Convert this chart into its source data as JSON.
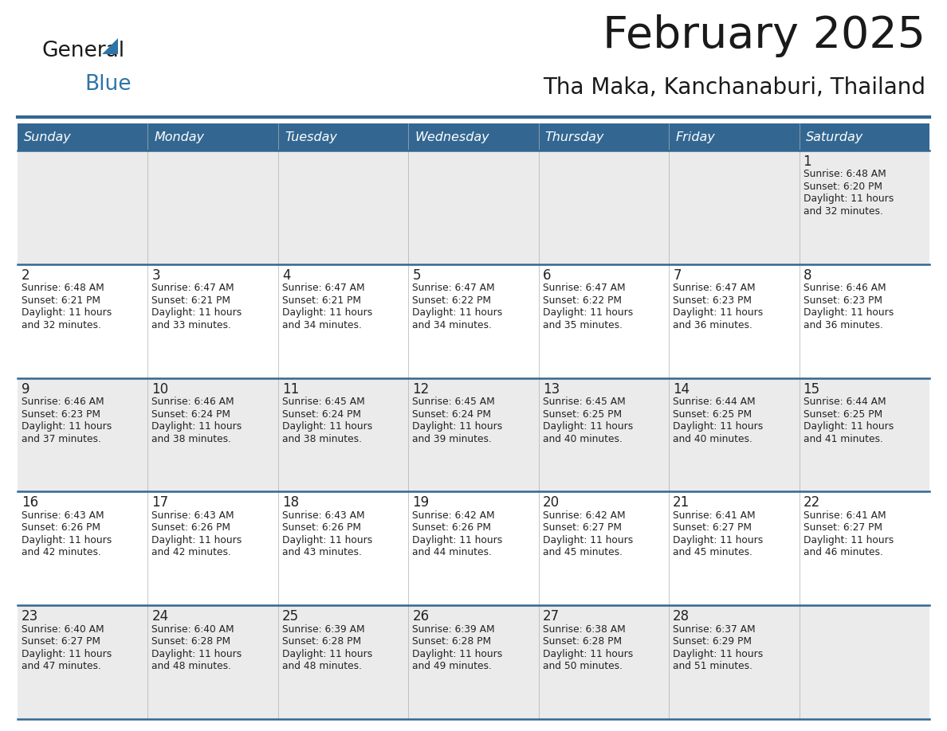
{
  "title": "February 2025",
  "subtitle": "Tha Maka, Kanchanaburi, Thailand",
  "header_bg": "#336791",
  "header_text": "#FFFFFF",
  "row_bg_row0": "#EBEBEB",
  "row_bg_odd": "#EBEBEB",
  "row_bg_even": "#FFFFFF",
  "border_color": "#336791",
  "day_headers": [
    "Sunday",
    "Monday",
    "Tuesday",
    "Wednesday",
    "Thursday",
    "Friday",
    "Saturday"
  ],
  "days_data": [
    {
      "day": 1,
      "col": 6,
      "row": 0,
      "sunrise": "6:48 AM",
      "sunset": "6:20 PM",
      "daylight_h": "11 hours",
      "daylight_m": "and 32 minutes."
    },
    {
      "day": 2,
      "col": 0,
      "row": 1,
      "sunrise": "6:48 AM",
      "sunset": "6:21 PM",
      "daylight_h": "11 hours",
      "daylight_m": "and 32 minutes."
    },
    {
      "day": 3,
      "col": 1,
      "row": 1,
      "sunrise": "6:47 AM",
      "sunset": "6:21 PM",
      "daylight_h": "11 hours",
      "daylight_m": "and 33 minutes."
    },
    {
      "day": 4,
      "col": 2,
      "row": 1,
      "sunrise": "6:47 AM",
      "sunset": "6:21 PM",
      "daylight_h": "11 hours",
      "daylight_m": "and 34 minutes."
    },
    {
      "day": 5,
      "col": 3,
      "row": 1,
      "sunrise": "6:47 AM",
      "sunset": "6:22 PM",
      "daylight_h": "11 hours",
      "daylight_m": "and 34 minutes."
    },
    {
      "day": 6,
      "col": 4,
      "row": 1,
      "sunrise": "6:47 AM",
      "sunset": "6:22 PM",
      "daylight_h": "11 hours",
      "daylight_m": "and 35 minutes."
    },
    {
      "day": 7,
      "col": 5,
      "row": 1,
      "sunrise": "6:47 AM",
      "sunset": "6:23 PM",
      "daylight_h": "11 hours",
      "daylight_m": "and 36 minutes."
    },
    {
      "day": 8,
      "col": 6,
      "row": 1,
      "sunrise": "6:46 AM",
      "sunset": "6:23 PM",
      "daylight_h": "11 hours",
      "daylight_m": "and 36 minutes."
    },
    {
      "day": 9,
      "col": 0,
      "row": 2,
      "sunrise": "6:46 AM",
      "sunset": "6:23 PM",
      "daylight_h": "11 hours",
      "daylight_m": "and 37 minutes."
    },
    {
      "day": 10,
      "col": 1,
      "row": 2,
      "sunrise": "6:46 AM",
      "sunset": "6:24 PM",
      "daylight_h": "11 hours",
      "daylight_m": "and 38 minutes."
    },
    {
      "day": 11,
      "col": 2,
      "row": 2,
      "sunrise": "6:45 AM",
      "sunset": "6:24 PM",
      "daylight_h": "11 hours",
      "daylight_m": "and 38 minutes."
    },
    {
      "day": 12,
      "col": 3,
      "row": 2,
      "sunrise": "6:45 AM",
      "sunset": "6:24 PM",
      "daylight_h": "11 hours",
      "daylight_m": "and 39 minutes."
    },
    {
      "day": 13,
      "col": 4,
      "row": 2,
      "sunrise": "6:45 AM",
      "sunset": "6:25 PM",
      "daylight_h": "11 hours",
      "daylight_m": "and 40 minutes."
    },
    {
      "day": 14,
      "col": 5,
      "row": 2,
      "sunrise": "6:44 AM",
      "sunset": "6:25 PM",
      "daylight_h": "11 hours",
      "daylight_m": "and 40 minutes."
    },
    {
      "day": 15,
      "col": 6,
      "row": 2,
      "sunrise": "6:44 AM",
      "sunset": "6:25 PM",
      "daylight_h": "11 hours",
      "daylight_m": "and 41 minutes."
    },
    {
      "day": 16,
      "col": 0,
      "row": 3,
      "sunrise": "6:43 AM",
      "sunset": "6:26 PM",
      "daylight_h": "11 hours",
      "daylight_m": "and 42 minutes."
    },
    {
      "day": 17,
      "col": 1,
      "row": 3,
      "sunrise": "6:43 AM",
      "sunset": "6:26 PM",
      "daylight_h": "11 hours",
      "daylight_m": "and 42 minutes."
    },
    {
      "day": 18,
      "col": 2,
      "row": 3,
      "sunrise": "6:43 AM",
      "sunset": "6:26 PM",
      "daylight_h": "11 hours",
      "daylight_m": "and 43 minutes."
    },
    {
      "day": 19,
      "col": 3,
      "row": 3,
      "sunrise": "6:42 AM",
      "sunset": "6:26 PM",
      "daylight_h": "11 hours",
      "daylight_m": "and 44 minutes."
    },
    {
      "day": 20,
      "col": 4,
      "row": 3,
      "sunrise": "6:42 AM",
      "sunset": "6:27 PM",
      "daylight_h": "11 hours",
      "daylight_m": "and 45 minutes."
    },
    {
      "day": 21,
      "col": 5,
      "row": 3,
      "sunrise": "6:41 AM",
      "sunset": "6:27 PM",
      "daylight_h": "11 hours",
      "daylight_m": "and 45 minutes."
    },
    {
      "day": 22,
      "col": 6,
      "row": 3,
      "sunrise": "6:41 AM",
      "sunset": "6:27 PM",
      "daylight_h": "11 hours",
      "daylight_m": "and 46 minutes."
    },
    {
      "day": 23,
      "col": 0,
      "row": 4,
      "sunrise": "6:40 AM",
      "sunset": "6:27 PM",
      "daylight_h": "11 hours",
      "daylight_m": "and 47 minutes."
    },
    {
      "day": 24,
      "col": 1,
      "row": 4,
      "sunrise": "6:40 AM",
      "sunset": "6:28 PM",
      "daylight_h": "11 hours",
      "daylight_m": "and 48 minutes."
    },
    {
      "day": 25,
      "col": 2,
      "row": 4,
      "sunrise": "6:39 AM",
      "sunset": "6:28 PM",
      "daylight_h": "11 hours",
      "daylight_m": "and 48 minutes."
    },
    {
      "day": 26,
      "col": 3,
      "row": 4,
      "sunrise": "6:39 AM",
      "sunset": "6:28 PM",
      "daylight_h": "11 hours",
      "daylight_m": "and 49 minutes."
    },
    {
      "day": 27,
      "col": 4,
      "row": 4,
      "sunrise": "6:38 AM",
      "sunset": "6:28 PM",
      "daylight_h": "11 hours",
      "daylight_m": "and 50 minutes."
    },
    {
      "day": 28,
      "col": 5,
      "row": 4,
      "sunrise": "6:37 AM",
      "sunset": "6:29 PM",
      "daylight_h": "11 hours",
      "daylight_m": "and 51 minutes."
    }
  ],
  "num_rows": 5,
  "num_cols": 7,
  "fig_width": 11.88,
  "fig_height": 9.18,
  "dpi": 100
}
